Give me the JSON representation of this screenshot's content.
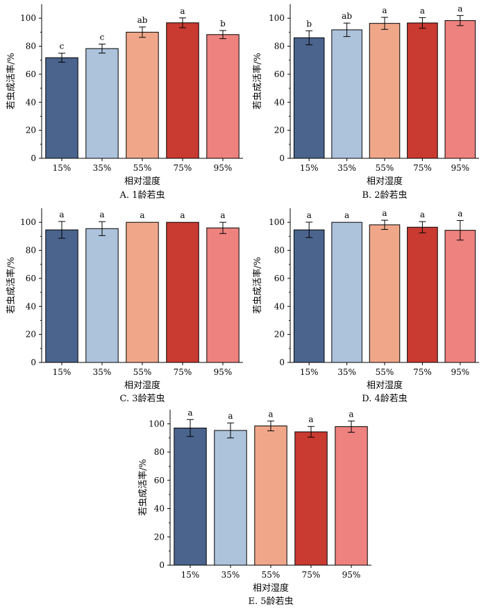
{
  "axis": {
    "ylabel": "若虫成活率/%",
    "xlabel": "相对湿度",
    "ylim": [
      0,
      110
    ],
    "yticks": [
      "0",
      "20",
      "40",
      "60",
      "80",
      "100"
    ]
  },
  "colors": [
    "#4a648d",
    "#adc3dc",
    "#f0a789",
    "#c93a31",
    "#ee827e"
  ],
  "chart_data": [
    {
      "type": "bar",
      "caption": "A. 1龄若虫",
      "categories": [
        "15%",
        "35%",
        "55%",
        "75%",
        "95%"
      ],
      "values": [
        71.8,
        78.3,
        90.0,
        96.7,
        88.3
      ],
      "errors": [
        3.2,
        3.2,
        3.7,
        3.5,
        2.9
      ],
      "letters": [
        "c",
        "c",
        "ab",
        "a",
        "b"
      ]
    },
    {
      "type": "bar",
      "caption": "B. 2龄若虫",
      "categories": [
        "15%",
        "35%",
        "55%",
        "75%",
        "95%"
      ],
      "values": [
        86.0,
        91.7,
        96.3,
        96.6,
        98.3
      ],
      "errors": [
        5.0,
        4.8,
        4.3,
        3.8,
        3.6
      ],
      "letters": [
        "b",
        "ab",
        "a",
        "a",
        "a"
      ]
    },
    {
      "type": "bar",
      "caption": "C. 3龄若虫",
      "categories": [
        "15%",
        "35%",
        "55%",
        "75%",
        "95%"
      ],
      "values": [
        94.6,
        95.5,
        100.0,
        100.0,
        96.0
      ],
      "errors": [
        6.0,
        5.0,
        0,
        0,
        4.0
      ],
      "letters": [
        "a",
        "a",
        "a",
        "a",
        "a"
      ]
    },
    {
      "type": "bar",
      "caption": "D. 4龄若虫",
      "categories": [
        "15%",
        "35%",
        "55%",
        "75%",
        "95%"
      ],
      "values": [
        94.6,
        100.0,
        98.2,
        96.5,
        94.3
      ],
      "errors": [
        5.5,
        0,
        3.3,
        4.0,
        7.0
      ],
      "letters": [
        "a",
        "a",
        "a",
        "a",
        "a"
      ]
    },
    {
      "type": "bar",
      "caption": "E. 5龄若虫",
      "categories": [
        "15%",
        "35%",
        "55%",
        "75%",
        "95%"
      ],
      "values": [
        97.0,
        95.3,
        98.5,
        94.3,
        98.0
      ],
      "errors": [
        6.0,
        5.3,
        3.5,
        3.8,
        4.0
      ],
      "letters": [
        "a",
        "a",
        "a",
        "a",
        "a"
      ]
    }
  ]
}
